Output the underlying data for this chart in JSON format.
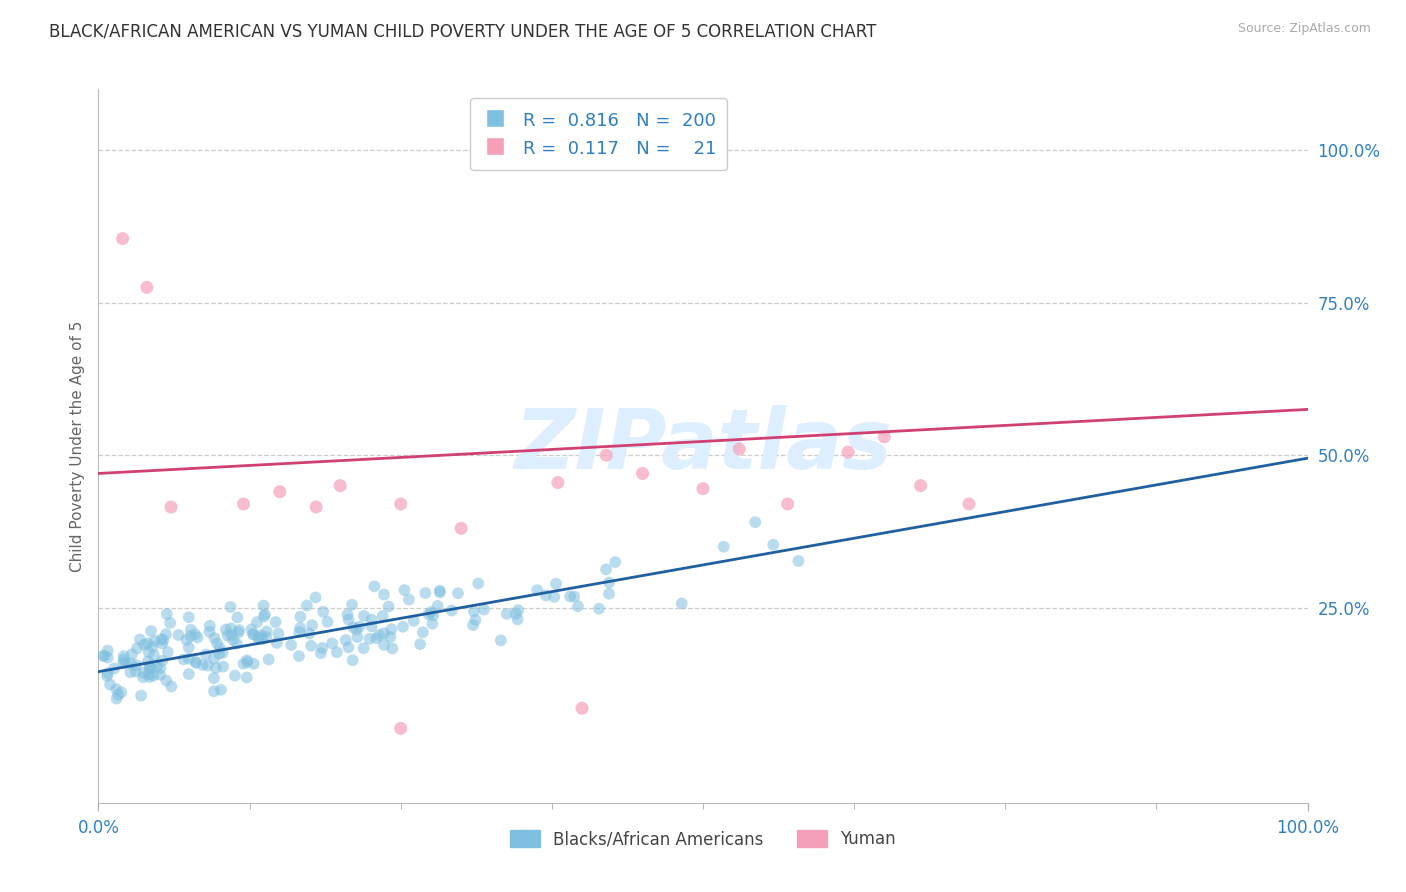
{
  "title": "BLACK/AFRICAN AMERICAN VS YUMAN CHILD POVERTY UNDER THE AGE OF 5 CORRELATION CHART",
  "source": "Source: ZipAtlas.com",
  "ylabel": "Child Poverty Under the Age of 5",
  "xlim": [
    0.0,
    1.0
  ],
  "ylim": [
    -0.07,
    1.1
  ],
  "blue_R": 0.816,
  "blue_N": 200,
  "pink_R": 0.117,
  "pink_N": 21,
  "blue_scatter_color": "#7fbfdf",
  "pink_scatter_color": "#f4a0b8",
  "blue_line_color": "#2060a0",
  "pink_line_color": "#d04070",
  "bg_color": "#ffffff",
  "grid_color": "#cccccc",
  "title_color": "#333333",
  "axis_label_color": "#3080c0",
  "watermark_text": "ZIPatlas",
  "watermark_color": "#ddeeff",
  "legend_label_blue": "Blacks/African Americans",
  "legend_label_pink": "Yuman",
  "x_tick_labels": [
    "0.0%",
    "100.0%"
  ],
  "y_tick_labels": [
    "25.0%",
    "50.0%",
    "75.0%",
    "100.0%"
  ],
  "y_tick_positions": [
    0.25,
    0.5,
    0.75,
    1.0
  ],
  "blue_line_start_y": 0.145,
  "blue_line_end_y": 0.495,
  "pink_line_start_y": 0.47,
  "pink_line_end_y": 0.575,
  "title_fontsize": 12,
  "label_fontsize": 11,
  "tick_fontsize": 12,
  "source_fontsize": 9
}
